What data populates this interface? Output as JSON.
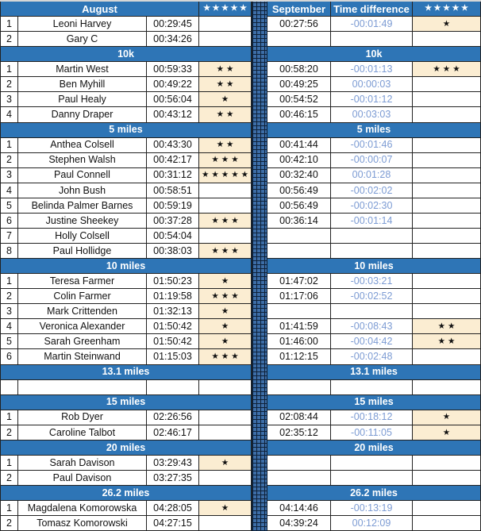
{
  "header": {
    "august": "August",
    "stars_left": "★★★★★",
    "september": "September",
    "time_difference": "Time difference",
    "stars_right": "★★★★★"
  },
  "icons": {
    "star": "★",
    "divider_pattern": "grid-pattern-column"
  },
  "colors": {
    "header_blue": "#2e75b6",
    "header_text": "#ffffff",
    "time_difference_text": "#7c9bd3",
    "star_cell_background": "#fbedd2",
    "gridline": "#222222",
    "divider_base": "#3d6ea8",
    "divider_lines": "#0e2138"
  },
  "sections": [
    {
      "name": null,
      "rows": [
        {
          "rank": "1",
          "name": "Leoni Harvey",
          "aug": "00:29:45",
          "aug_stars": 0,
          "sep": "00:27:56",
          "diff": "-00:01:49",
          "sep_stars": 1
        },
        {
          "rank": "2",
          "name": "Gary C",
          "aug": "00:34:26",
          "aug_stars": 0,
          "sep": "",
          "diff": "",
          "sep_stars": 0
        }
      ]
    },
    {
      "name": "10k",
      "rows": [
        {
          "rank": "1",
          "name": "Martin West",
          "aug": "00:59:33",
          "aug_stars": 2,
          "sep": "00:58:20",
          "diff": "-00:01:13",
          "sep_stars": 3
        },
        {
          "rank": "2",
          "name": "Ben Myhill",
          "aug": "00:49:22",
          "aug_stars": 2,
          "sep": "00:49:25",
          "diff": "00:00:03",
          "sep_stars": 0
        },
        {
          "rank": "3",
          "name": "Paul Healy",
          "aug": "00:56:04",
          "aug_stars": 1,
          "sep": "00:54:52",
          "diff": "-00:01:12",
          "sep_stars": 0
        },
        {
          "rank": "4",
          "name": "Danny Draper",
          "aug": "00:43:12",
          "aug_stars": 2,
          "sep": "00:46:15",
          "diff": "00:03:03",
          "sep_stars": 0
        }
      ]
    },
    {
      "name": "5 miles",
      "rows": [
        {
          "rank": "1",
          "name": "Anthea Colsell",
          "aug": "00:43:30",
          "aug_stars": 2,
          "sep": "00:41:44",
          "diff": "-00:01:46",
          "sep_stars": 0
        },
        {
          "rank": "2",
          "name": "Stephen Walsh",
          "aug": "00:42:17",
          "aug_stars": 3,
          "sep": "00:42:10",
          "diff": "-00:00:07",
          "sep_stars": 0
        },
        {
          "rank": "3",
          "name": "Paul Connell",
          "aug": "00:31:12",
          "aug_stars": 5,
          "sep": "00:32:40",
          "diff": "00:01:28",
          "sep_stars": 0
        },
        {
          "rank": "4",
          "name": "John Bush",
          "aug": "00:58:51",
          "aug_stars": 0,
          "sep": "00:56:49",
          "diff": "-00:02:02",
          "sep_stars": 0
        },
        {
          "rank": "5",
          "name": "Belinda Palmer Barnes",
          "aug": "00:59:19",
          "aug_stars": 0,
          "sep": "00:56:49",
          "diff": "-00:02:30",
          "sep_stars": 0
        },
        {
          "rank": "6",
          "name": "Justine Sheekey",
          "aug": "00:37:28",
          "aug_stars": 3,
          "sep": "00:36:14",
          "diff": "-00:01:14",
          "sep_stars": 0
        },
        {
          "rank": "7",
          "name": "Holly Colsell",
          "aug": "00:54:04",
          "aug_stars": 0,
          "sep": "",
          "diff": "",
          "sep_stars": 0
        },
        {
          "rank": "8",
          "name": "Paul Hollidge",
          "aug": "00:38:03",
          "aug_stars": 3,
          "sep": "",
          "diff": "",
          "sep_stars": 0
        }
      ]
    },
    {
      "name": "10 miles",
      "rows": [
        {
          "rank": "1",
          "name": "Teresa Farmer",
          "aug": "01:50:23",
          "aug_stars": 1,
          "sep": "01:47:02",
          "diff": "-00:03:21",
          "sep_stars": 0
        },
        {
          "rank": "2",
          "name": "Colin Farmer",
          "aug": "01:19:58",
          "aug_stars": 3,
          "sep": "01:17:06",
          "diff": "-00:02:52",
          "sep_stars": 0
        },
        {
          "rank": "3",
          "name": "Mark Crittenden",
          "aug": "01:32:13",
          "aug_stars": 1,
          "sep": "",
          "diff": "",
          "sep_stars": 0
        },
        {
          "rank": "4",
          "name": "Veronica Alexander",
          "aug": "01:50:42",
          "aug_stars": 1,
          "sep": "01:41:59",
          "diff": "-00:08:43",
          "sep_stars": 2
        },
        {
          "rank": "5",
          "name": "Sarah Greenham",
          "aug": "01:50:42",
          "aug_stars": 1,
          "sep": "01:46:00",
          "diff": "-00:04:42",
          "sep_stars": 2
        },
        {
          "rank": "6",
          "name": "Martin Steinwand",
          "aug": "01:15:03",
          "aug_stars": 3,
          "sep": "01:12:15",
          "diff": "-00:02:48",
          "sep_stars": 0
        }
      ]
    },
    {
      "name": "13.1 miles",
      "rows": [
        {
          "rank": "",
          "name": "",
          "aug": "",
          "aug_stars": 0,
          "sep": "",
          "diff": "",
          "sep_stars": 0
        }
      ]
    },
    {
      "name": "15 miles",
      "rows": [
        {
          "rank": "1",
          "name": "Rob Dyer",
          "aug": "02:26:56",
          "aug_stars": 0,
          "sep": "02:08:44",
          "diff": "-00:18:12",
          "sep_stars": 1
        },
        {
          "rank": "2",
          "name": "Caroline Talbot",
          "aug": "02:46:17",
          "aug_stars": 0,
          "sep": "02:35:12",
          "diff": "-00:11:05",
          "sep_stars": 1
        }
      ]
    },
    {
      "name": "20 miles",
      "rows": [
        {
          "rank": "1",
          "name": "Sarah Davison",
          "aug": "03:29:43",
          "aug_stars": 1,
          "sep": "",
          "diff": "",
          "sep_stars": 0
        },
        {
          "rank": "2",
          "name": "Paul Davison",
          "aug": "03:27:35",
          "aug_stars": 0,
          "sep": "",
          "diff": "",
          "sep_stars": 0
        }
      ]
    },
    {
      "name": "26.2 miles",
      "rows": [
        {
          "rank": "1",
          "name": "Magdalena Komorowska",
          "aug": "04:28:05",
          "aug_stars": 1,
          "sep": "04:14:46",
          "diff": "-00:13:19",
          "sep_stars": 0
        },
        {
          "rank": "2",
          "name": "Tomasz Komorowski",
          "aug": "04:27:15",
          "aug_stars": 0,
          "sep": "04:39:24",
          "diff": "00:12:09",
          "sep_stars": 0
        }
      ]
    }
  ]
}
